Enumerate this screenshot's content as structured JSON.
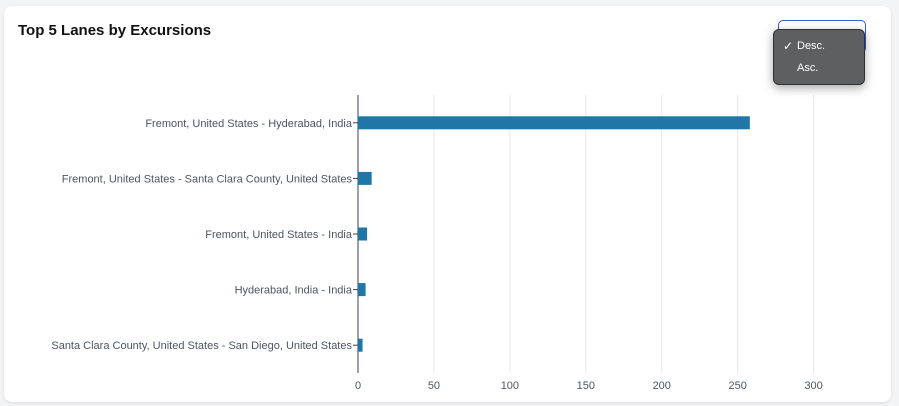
{
  "widget": {
    "title": "Top 5 Lanes by Excursions"
  },
  "sort_menu": {
    "options": [
      "Desc.",
      "Asc."
    ],
    "selected": "Desc.",
    "selected_icon": "checkmark-icon"
  },
  "colors": {
    "bar": "#2176a8",
    "grid": "#e5e7eb",
    "axis": "#374151",
    "menu_bg": "#5d5f61",
    "select_border": "#3b5bdb"
  },
  "chart_data": {
    "type": "bar",
    "orientation": "horizontal",
    "categories": [
      "Fremont, United States - Hyderabad, India",
      "Fremont, United States - Santa Clara County, United States",
      "Fremont, United States - India",
      "Hyderabad, India - India",
      "Santa Clara County, United States - San Diego, United States"
    ],
    "values": [
      258,
      9,
      6,
      5,
      3
    ],
    "title": "Top 5 Lanes by Excursions",
    "xlabel": "",
    "ylabel": "",
    "xlim": [
      0,
      320
    ],
    "xticks": [
      0,
      50,
      100,
      150,
      200,
      250,
      300
    ],
    "grid": true,
    "legend": "none"
  }
}
